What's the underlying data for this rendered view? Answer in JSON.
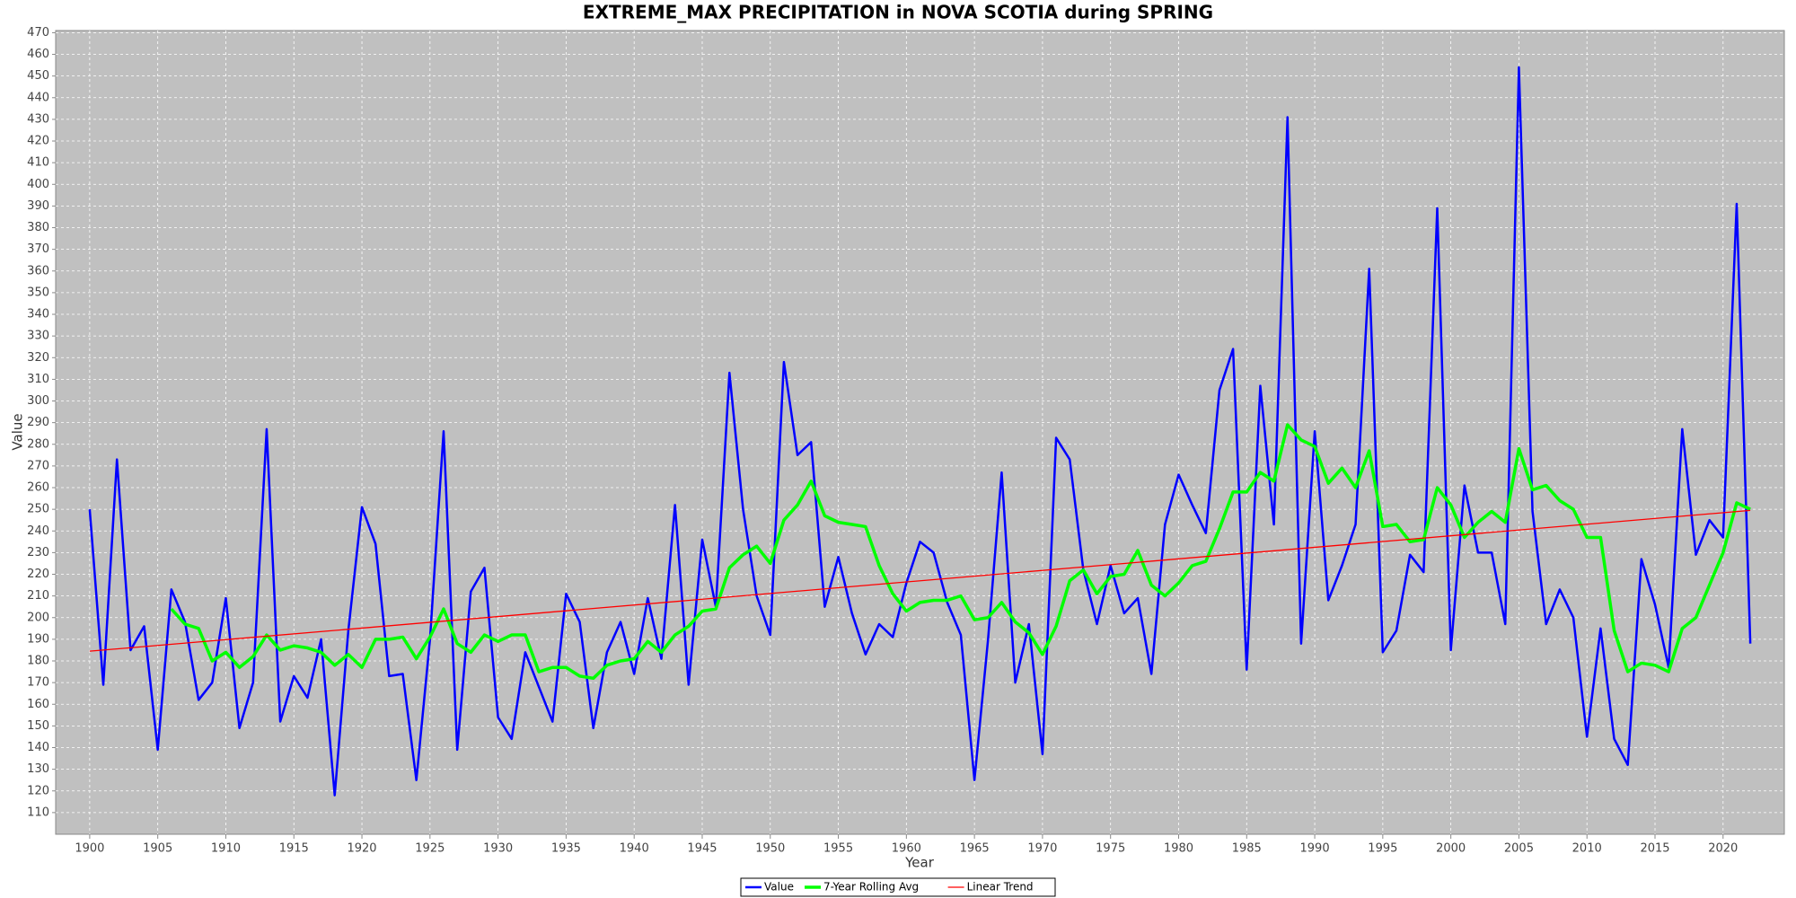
{
  "chart_data": {
    "type": "line",
    "title": "EXTREME_MAX PRECIPITATION in NOVA SCOTIA during SPRING",
    "x_label": "Year",
    "y_label": "Value",
    "x": [
      1900,
      1901,
      1902,
      1903,
      1904,
      1905,
      1906,
      1907,
      1908,
      1909,
      1910,
      1911,
      1912,
      1913,
      1914,
      1915,
      1916,
      1917,
      1918,
      1919,
      1920,
      1921,
      1922,
      1923,
      1924,
      1925,
      1926,
      1927,
      1928,
      1929,
      1930,
      1931,
      1932,
      1933,
      1934,
      1935,
      1936,
      1937,
      1938,
      1939,
      1940,
      1941,
      1942,
      1943,
      1944,
      1945,
      1946,
      1947,
      1948,
      1949,
      1950,
      1951,
      1952,
      1953,
      1954,
      1955,
      1956,
      1957,
      1958,
      1959,
      1960,
      1961,
      1962,
      1963,
      1964,
      1965,
      1966,
      1967,
      1968,
      1969,
      1970,
      1971,
      1972,
      1973,
      1974,
      1975,
      1976,
      1977,
      1978,
      1979,
      1980,
      1981,
      1982,
      1983,
      1984,
      1985,
      1986,
      1987,
      1988,
      1989,
      1990,
      1991,
      1992,
      1993,
      1994,
      1995,
      1996,
      1997,
      1998,
      1999,
      2000,
      2001,
      2002,
      2003,
      2004,
      2005,
      2006,
      2007,
      2008,
      2009,
      2010,
      2011,
      2012,
      2013,
      2014,
      2015,
      2016,
      2017,
      2018,
      2019,
      2020,
      2021,
      2022
    ],
    "series": [
      {
        "name": "Value",
        "color": "#0000ff",
        "width": 2.5,
        "values": [
          250,
          169,
          273,
          185,
          196,
          139,
          213,
          198,
          162,
          170,
          209,
          149,
          170,
          287,
          152,
          173,
          163,
          190,
          118,
          194,
          251,
          234,
          173,
          174,
          125,
          190,
          286,
          139,
          212,
          223,
          154,
          144,
          184,
          168,
          152,
          211,
          198,
          149,
          184,
          198,
          174,
          209,
          181,
          252,
          169,
          236,
          205,
          313,
          250,
          210,
          192,
          318,
          275,
          281,
          205,
          228,
          202,
          183,
          197,
          191,
          216,
          235,
          230,
          207,
          192,
          125,
          190,
          267,
          170,
          197,
          137,
          283,
          273,
          222,
          197,
          224,
          202,
          209,
          174,
          243,
          266,
          252,
          239,
          305,
          324,
          176,
          307,
          243,
          431,
          188,
          286,
          208,
          224,
          243,
          361,
          184,
          194,
          229,
          221,
          389,
          185,
          261,
          230,
          230,
          197,
          454,
          249,
          197,
          213,
          200,
          145,
          195,
          144,
          132,
          227,
          206,
          177,
          287,
          229,
          245,
          237,
          391,
          188
        ]
      },
      {
        "name": "7-Year Rolling Avg",
        "color": "#00ff00",
        "width": 3.5,
        "values": [
          null,
          null,
          null,
          null,
          null,
          null,
          204,
          197,
          195,
          180,
          184,
          177,
          182,
          192,
          185,
          187,
          186,
          184,
          178,
          183,
          177,
          190,
          190,
          191,
          181,
          191,
          204,
          188,
          184,
          192,
          189,
          192,
          192,
          175,
          177,
          177,
          173,
          172,
          178,
          180,
          181,
          189,
          184,
          192,
          196,
          203,
          204,
          223,
          229,
          233,
          225,
          245,
          252,
          263,
          247,
          244,
          243,
          242,
          224,
          211,
          203,
          207,
          208,
          208,
          210,
          199,
          200,
          207,
          198,
          193,
          183,
          196,
          217,
          222,
          211,
          219,
          220,
          231,
          215,
          210,
          216,
          224,
          226,
          241,
          258,
          258,
          267,
          263,
          289,
          282,
          279,
          262,
          269,
          260,
          277,
          242,
          243,
          235,
          236,
          260,
          252,
          237,
          244,
          249,
          244,
          278,
          259,
          261,
          254,
          250,
          237,
          237,
          194,
          175,
          179,
          178,
          175,
          195,
          200,
          215,
          230,
          253,
          250
        ]
      },
      {
        "name": "Linear Trend",
        "color": "#ff0000",
        "width": 1.3,
        "x": [
          1900,
          2022
        ],
        "values": [
          184.5,
          249.5
        ]
      }
    ],
    "xlim": [
      1897.5,
      2024.5
    ],
    "ylim": [
      100,
      471
    ],
    "xticks": [
      1900,
      1905,
      1910,
      1915,
      1920,
      1925,
      1930,
      1935,
      1940,
      1945,
      1950,
      1955,
      1960,
      1965,
      1970,
      1975,
      1980,
      1985,
      1990,
      1995,
      2000,
      2005,
      2010,
      2015,
      2020
    ],
    "yticks": [
      110,
      120,
      130,
      140,
      150,
      160,
      170,
      180,
      190,
      200,
      210,
      220,
      230,
      240,
      250,
      260,
      270,
      280,
      290,
      300,
      310,
      320,
      330,
      340,
      350,
      360,
      370,
      380,
      390,
      400,
      410,
      420,
      430,
      440,
      450,
      460,
      470
    ],
    "grid": true,
    "background": "#c0c0c0",
    "legend": "bottom"
  }
}
